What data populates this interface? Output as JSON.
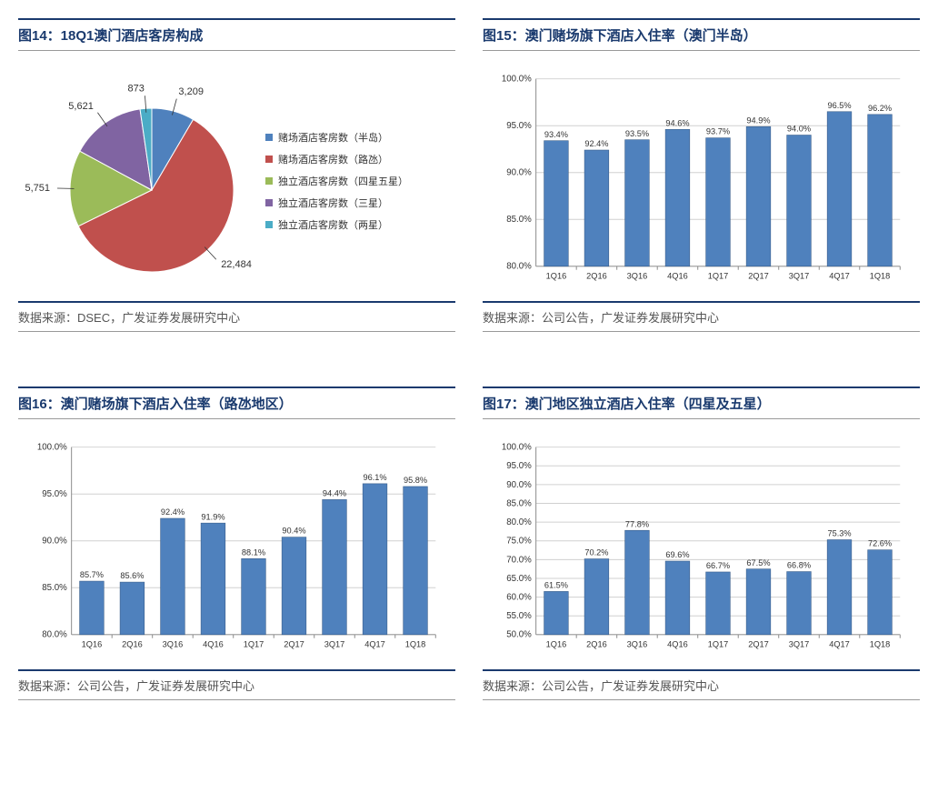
{
  "panels": [
    {
      "title": "图14：18Q1澳门酒店客房构成",
      "source": "数据来源：DSEC，广发证券发展研究中心",
      "chart": {
        "type": "pie",
        "slices": [
          {
            "label": "赌场酒店客房数（半岛）",
            "value": 3209,
            "color": "#4f81bd"
          },
          {
            "label": "赌场酒店客房数（路氹）",
            "value": 22484,
            "color": "#c0504d"
          },
          {
            "label": "独立酒店客房数（四星五星）",
            "value": 5751,
            "color": "#9bbb59"
          },
          {
            "label": "独立酒店客房数（三星）",
            "value": 5621,
            "color": "#8064a2"
          },
          {
            "label": "独立酒店客房数（两星）",
            "value": 873,
            "color": "#4bacc6"
          }
        ],
        "label_fontsize": 11,
        "legend_fontsize": 11,
        "stroke_color": "#ffffff",
        "stroke_width": 1,
        "leader_color": "#333333"
      }
    },
    {
      "title": "图15：澳门赌场旗下酒店入住率（澳门半岛）",
      "source": "数据来源：公司公告，广发证券发展研究中心",
      "chart": {
        "type": "bar",
        "categories": [
          "1Q16",
          "2Q16",
          "3Q16",
          "4Q16",
          "1Q17",
          "2Q17",
          "3Q17",
          "4Q17",
          "1Q18"
        ],
        "values": [
          93.4,
          92.4,
          93.5,
          94.6,
          93.7,
          94.9,
          94.0,
          96.5,
          96.2
        ],
        "value_format": "percent1",
        "bar_color": "#4f81bd",
        "bar_border": "#385d8a",
        "ylim": [
          80,
          100
        ],
        "ytick_step": 5,
        "y_format": "percent1",
        "grid_color": "#d0d0d0",
        "axis_color": "#888888",
        "label_fontsize": 9.5,
        "bar_width_ratio": 0.6
      }
    },
    {
      "title": "图16：澳门赌场旗下酒店入住率（路氹地区）",
      "source": "数据来源：公司公告，广发证券发展研究中心",
      "chart": {
        "type": "bar",
        "categories": [
          "1Q16",
          "2Q16",
          "3Q16",
          "4Q16",
          "1Q17",
          "2Q17",
          "3Q17",
          "4Q17",
          "1Q18"
        ],
        "values": [
          85.7,
          85.6,
          92.4,
          91.9,
          88.1,
          90.4,
          94.4,
          96.1,
          95.8
        ],
        "value_format": "percent1",
        "bar_color": "#4f81bd",
        "bar_border": "#385d8a",
        "ylim": [
          80,
          100
        ],
        "ytick_step": 5,
        "y_format": "percent1",
        "grid_color": "#d0d0d0",
        "axis_color": "#888888",
        "label_fontsize": 9.5,
        "bar_width_ratio": 0.6
      }
    },
    {
      "title": "图17：澳门地区独立酒店入住率（四星及五星）",
      "source": "数据来源：公司公告，广发证券发展研究中心",
      "chart": {
        "type": "bar",
        "categories": [
          "1Q16",
          "2Q16",
          "3Q16",
          "4Q16",
          "1Q17",
          "2Q17",
          "3Q17",
          "4Q17",
          "1Q18"
        ],
        "values": [
          61.5,
          70.2,
          77.8,
          69.6,
          66.7,
          67.5,
          66.8,
          75.3,
          72.6
        ],
        "value_format": "percent1",
        "bar_color": "#4f81bd",
        "bar_border": "#385d8a",
        "ylim": [
          50,
          100
        ],
        "ytick_step": 5,
        "y_format": "percent1",
        "grid_color": "#d0d0d0",
        "axis_color": "#888888",
        "label_fontsize": 9.5,
        "bar_width_ratio": 0.6
      }
    }
  ]
}
